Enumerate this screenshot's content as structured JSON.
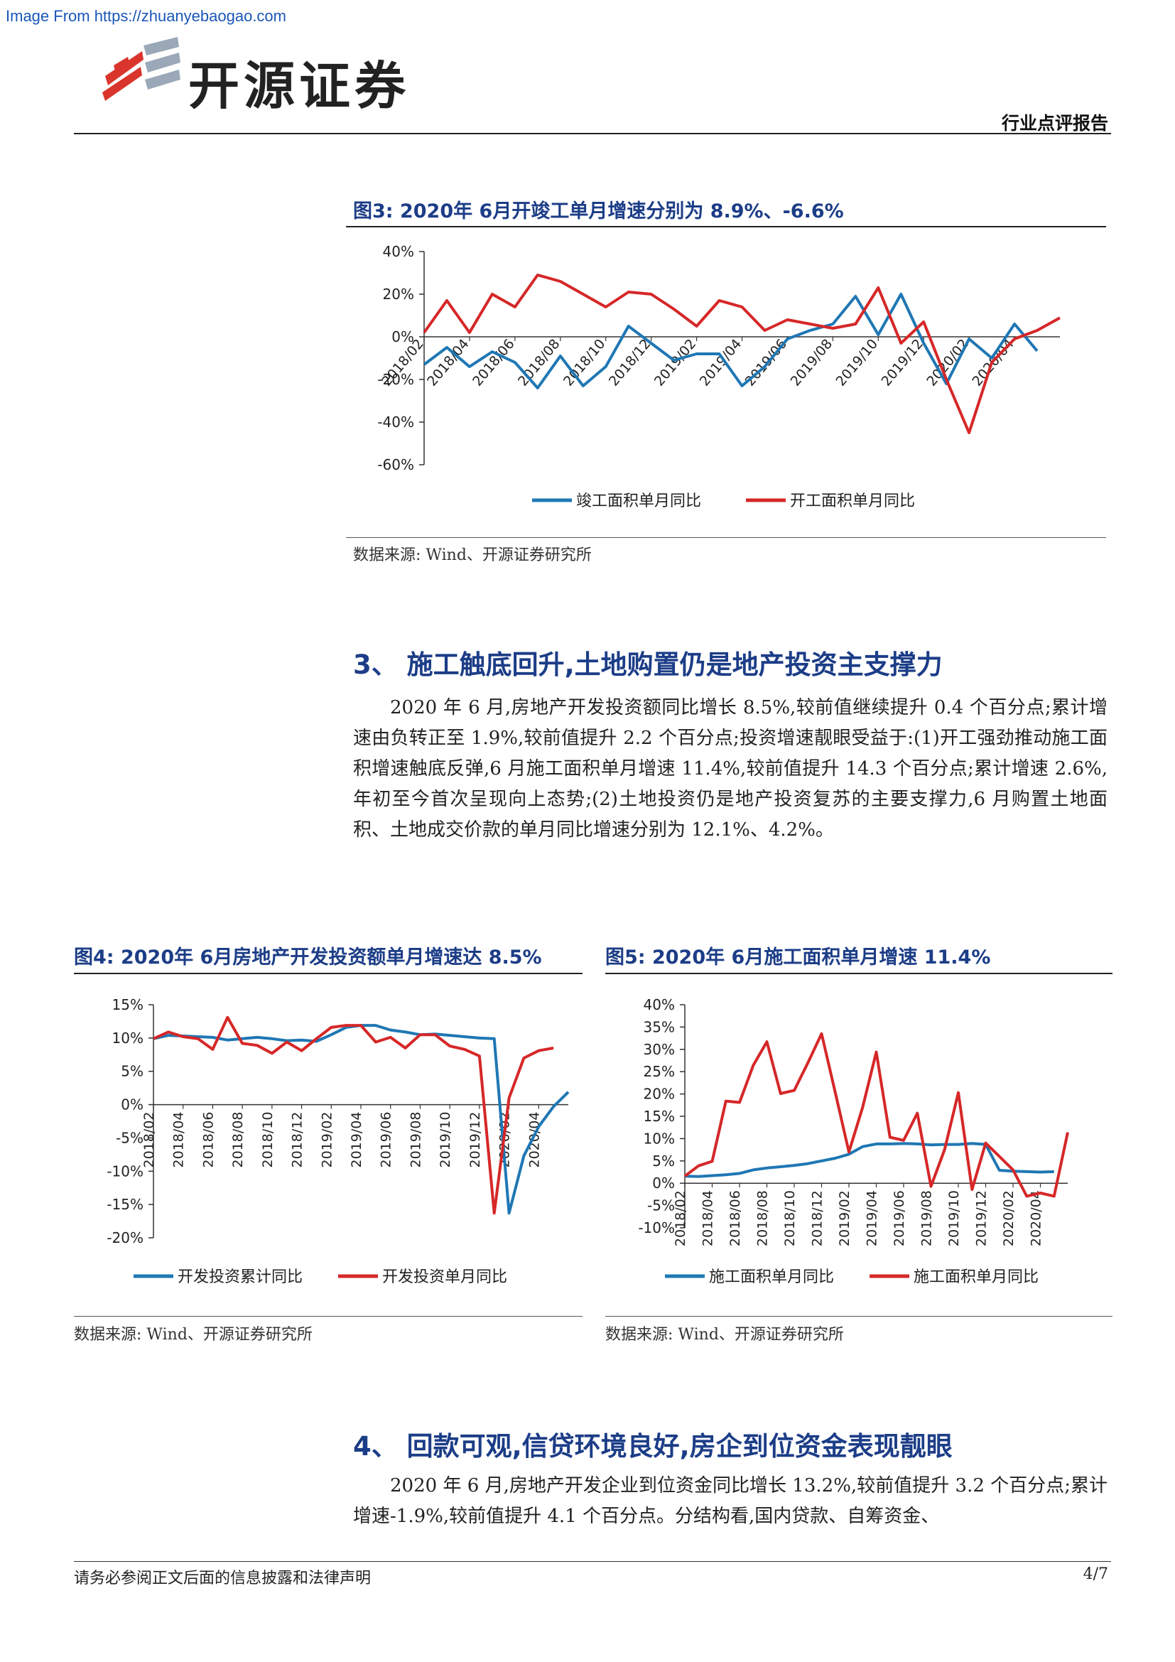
{
  "watermark": "Image From https://zhuanyebaogao.com",
  "header": {
    "brand": "开源证券",
    "report_type": "行业点评报告"
  },
  "fig3": {
    "title": "图3:  2020年 6月开竣工单月增速分别为 8.9%、-6.6%",
    "source": "数据来源: Wind、开源证券研究所"
  },
  "fig4": {
    "title": "图4:  2020年 6月房地产开发投资额单月增速达 8.5%",
    "source": "数据来源: Wind、开源证券研究所"
  },
  "fig5": {
    "title": "图5:  2020年 6月施工面积单月增速 11.4%",
    "source": "数据来源: Wind、开源证券研究所"
  },
  "section3": {
    "heading": "3、 施工触底回升,土地购置仍是地产投资主支撑力",
    "paragraph": "2020 年 6 月,房地产开发投资额同比增长 8.5%,较前值继续提升 0.4 个百分点;累计增速由负转正至 1.9%,较前值提升 2.2 个百分点;投资增速靓眼受益于:(1)开工强劲推动施工面积增速触底反弹,6 月施工面积单月增速 11.4%,较前值提升 14.3 个百分点;累计增速 2.6%,年初至今首次呈现向上态势;(2)土地投资仍是地产投资复苏的主要支撑力,6 月购置土地面积、土地成交价款的单月同比增速分别为 12.1%、4.2%。"
  },
  "section4": {
    "heading": "4、 回款可观,信贷环境良好,房企到位资金表现靓眼",
    "paragraph": "2020 年 6 月,房地产开发企业到位资金同比增长 13.2%,较前值提升 3.2 个百分点;累计增速-1.9%,较前值提升 4.1 个百分点。分结构看,国内贷款、自筹资金、"
  },
  "footer": {
    "disclaimer": "请务必参阅正文后面的信息披露和法律声明",
    "page": "4/7"
  },
  "chart_data": [
    {
      "id": "fig3",
      "type": "line",
      "ylim": [
        -60,
        40
      ],
      "yticks": [
        40,
        20,
        0,
        -20,
        -40,
        -60
      ],
      "tick_format": "percent",
      "x_labels": [
        "2018/02",
        "2018/04",
        "2018/06",
        "2018/08",
        "2018/10",
        "2018/12",
        "2019/02",
        "2019/04",
        "2019/06",
        "2019/08",
        "2019/10",
        "2019/12",
        "2020/02",
        "2020/04"
      ],
      "series": [
        {
          "name": "竣工面积单月同比",
          "color": "#1f77b4",
          "values": [
            -13,
            -5,
            -14,
            -7,
            -12,
            -24,
            -9,
            -23,
            -14,
            5,
            -3,
            -11,
            -8,
            -8,
            -23,
            -14,
            -1,
            3,
            6,
            19,
            1,
            20,
            -3,
            -22,
            -1,
            -10,
            6,
            -6.6
          ]
        },
        {
          "name": "开工面积单月同比",
          "color": "#d62728",
          "values": [
            2,
            17,
            2,
            20,
            14,
            29,
            26,
            20,
            14,
            21,
            20,
            13,
            5,
            17,
            14,
            3,
            8,
            6,
            4,
            6,
            23,
            -3,
            7,
            -20,
            -45,
            -12,
            -1,
            3,
            8.9
          ]
        }
      ]
    },
    {
      "id": "fig4",
      "type": "line",
      "ylim": [
        -20,
        15
      ],
      "yticks": [
        15,
        10,
        5,
        0,
        -5,
        -10,
        -15,
        -20
      ],
      "tick_format": "percent",
      "x_labels": [
        "2018/02",
        "2018/04",
        "2018/06",
        "2018/08",
        "2018/10",
        "2018/12",
        "2019/02",
        "2019/04",
        "2019/06",
        "2019/08",
        "2019/10",
        "2019/12",
        "2020/02",
        "2020/04"
      ],
      "series": [
        {
          "name": "开发投资累计同比",
          "color": "#1f77b4",
          "values": [
            9.9,
            10.4,
            10.3,
            10.2,
            10.1,
            9.7,
            9.9,
            10.1,
            9.9,
            9.6,
            9.7,
            9.5,
            10.5,
            11.6,
            11.9,
            11.9,
            11.2,
            10.9,
            10.5,
            10.6,
            10.4,
            10.2,
            10.0,
            9.9,
            -16.3,
            -7.7,
            -3.3,
            -0.3,
            1.9
          ]
        },
        {
          "name": "开发投资单月同比",
          "color": "#d62728",
          "values": [
            9.9,
            10.9,
            10.2,
            9.9,
            8.3,
            13.1,
            9.2,
            8.9,
            7.7,
            9.4,
            8.1,
            9.9,
            11.6,
            11.9,
            11.9,
            9.4,
            10.1,
            8.5,
            10.5,
            10.5,
            8.8,
            8.3,
            7.3,
            -16.3,
            1.0,
            7.0,
            8.1,
            8.5
          ]
        }
      ]
    },
    {
      "id": "fig5",
      "type": "line",
      "ylim": [
        -10,
        40
      ],
      "yticks": [
        40,
        35,
        30,
        25,
        20,
        15,
        10,
        5,
        0,
        -5,
        -10
      ],
      "tick_format": "percent",
      "x_labels": [
        "2018/02",
        "2018/04",
        "2018/06",
        "2018/08",
        "2018/10",
        "2018/12",
        "2019/02",
        "2019/04",
        "2019/06",
        "2019/08",
        "2019/10",
        "2019/12",
        "2020/02",
        "2020/04"
      ],
      "series": [
        {
          "name": "施工面积单月同比",
          "color": "#1f77b4",
          "values": [
            1.6,
            1.5,
            1.7,
            1.9,
            2.2,
            3.0,
            3.4,
            3.7,
            4.0,
            4.4,
            5.0,
            5.6,
            6.5,
            8.2,
            8.8,
            8.8,
            8.9,
            8.8,
            8.6,
            8.7,
            8.7,
            8.9,
            8.7,
            2.9,
            2.7,
            2.6,
            2.5,
            2.6
          ]
        },
        {
          "name": "施工面积单月同比",
          "color": "#d62728",
          "values": [
            1.6,
            3.9,
            4.9,
            18.4,
            18.1,
            26.4,
            31.7,
            20.1,
            20.8,
            27.0,
            33.5,
            20.3,
            7.0,
            17.0,
            29.4,
            10.3,
            9.6,
            15.7,
            -0.7,
            7.6,
            20.3,
            -1.4,
            9.0,
            6.0,
            3.0,
            -2.9,
            -2.2,
            -2.9,
            11.4
          ]
        }
      ]
    }
  ]
}
